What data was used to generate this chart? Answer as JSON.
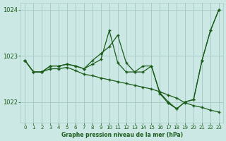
{
  "title": "Graphe pression niveau de la mer (hPa)",
  "background_color": "#cce8e4",
  "line_color": "#1a5c1a",
  "grid_color": "#a8ccc8",
  "xlim": [
    -0.5,
    23.5
  ],
  "ylim": [
    1021.55,
    1024.15
  ],
  "yticks": [
    1022,
    1023,
    1024
  ],
  "xticks": [
    0,
    1,
    2,
    3,
    4,
    5,
    6,
    7,
    8,
    9,
    10,
    11,
    12,
    13,
    14,
    15,
    16,
    17,
    18,
    19,
    20,
    21,
    22,
    23
  ],
  "s1": [
    1022.9,
    1022.65,
    1022.65,
    1022.78,
    1022.78,
    1022.82,
    1022.78,
    1022.72,
    1022.9,
    1023.05,
    1023.2,
    1023.45,
    1022.85,
    1022.65,
    1022.65,
    1022.78,
    1022.2,
    1022.0,
    1021.85,
    1022.0,
    1022.05,
    1022.9,
    1023.55,
    1024.0
  ],
  "s2": [
    1022.9,
    1022.65,
    1022.65,
    1022.78,
    1022.78,
    1022.82,
    1022.78,
    1022.72,
    1022.82,
    1022.92,
    1023.55,
    1022.85,
    1022.65,
    1022.65,
    1022.78,
    1022.78,
    1022.18,
    1021.97,
    1021.85,
    1022.0,
    1022.05,
    1022.9,
    1023.55,
    1024.0
  ],
  "s3": [
    1022.9,
    1022.65,
    1022.65,
    1022.72,
    1022.72,
    1022.75,
    1022.68,
    1022.6,
    1022.57,
    1022.52,
    1022.48,
    1022.44,
    1022.4,
    1022.36,
    1022.32,
    1022.28,
    1022.22,
    1022.15,
    1022.08,
    1021.98,
    1021.92,
    1021.88,
    1021.82,
    1021.78
  ]
}
